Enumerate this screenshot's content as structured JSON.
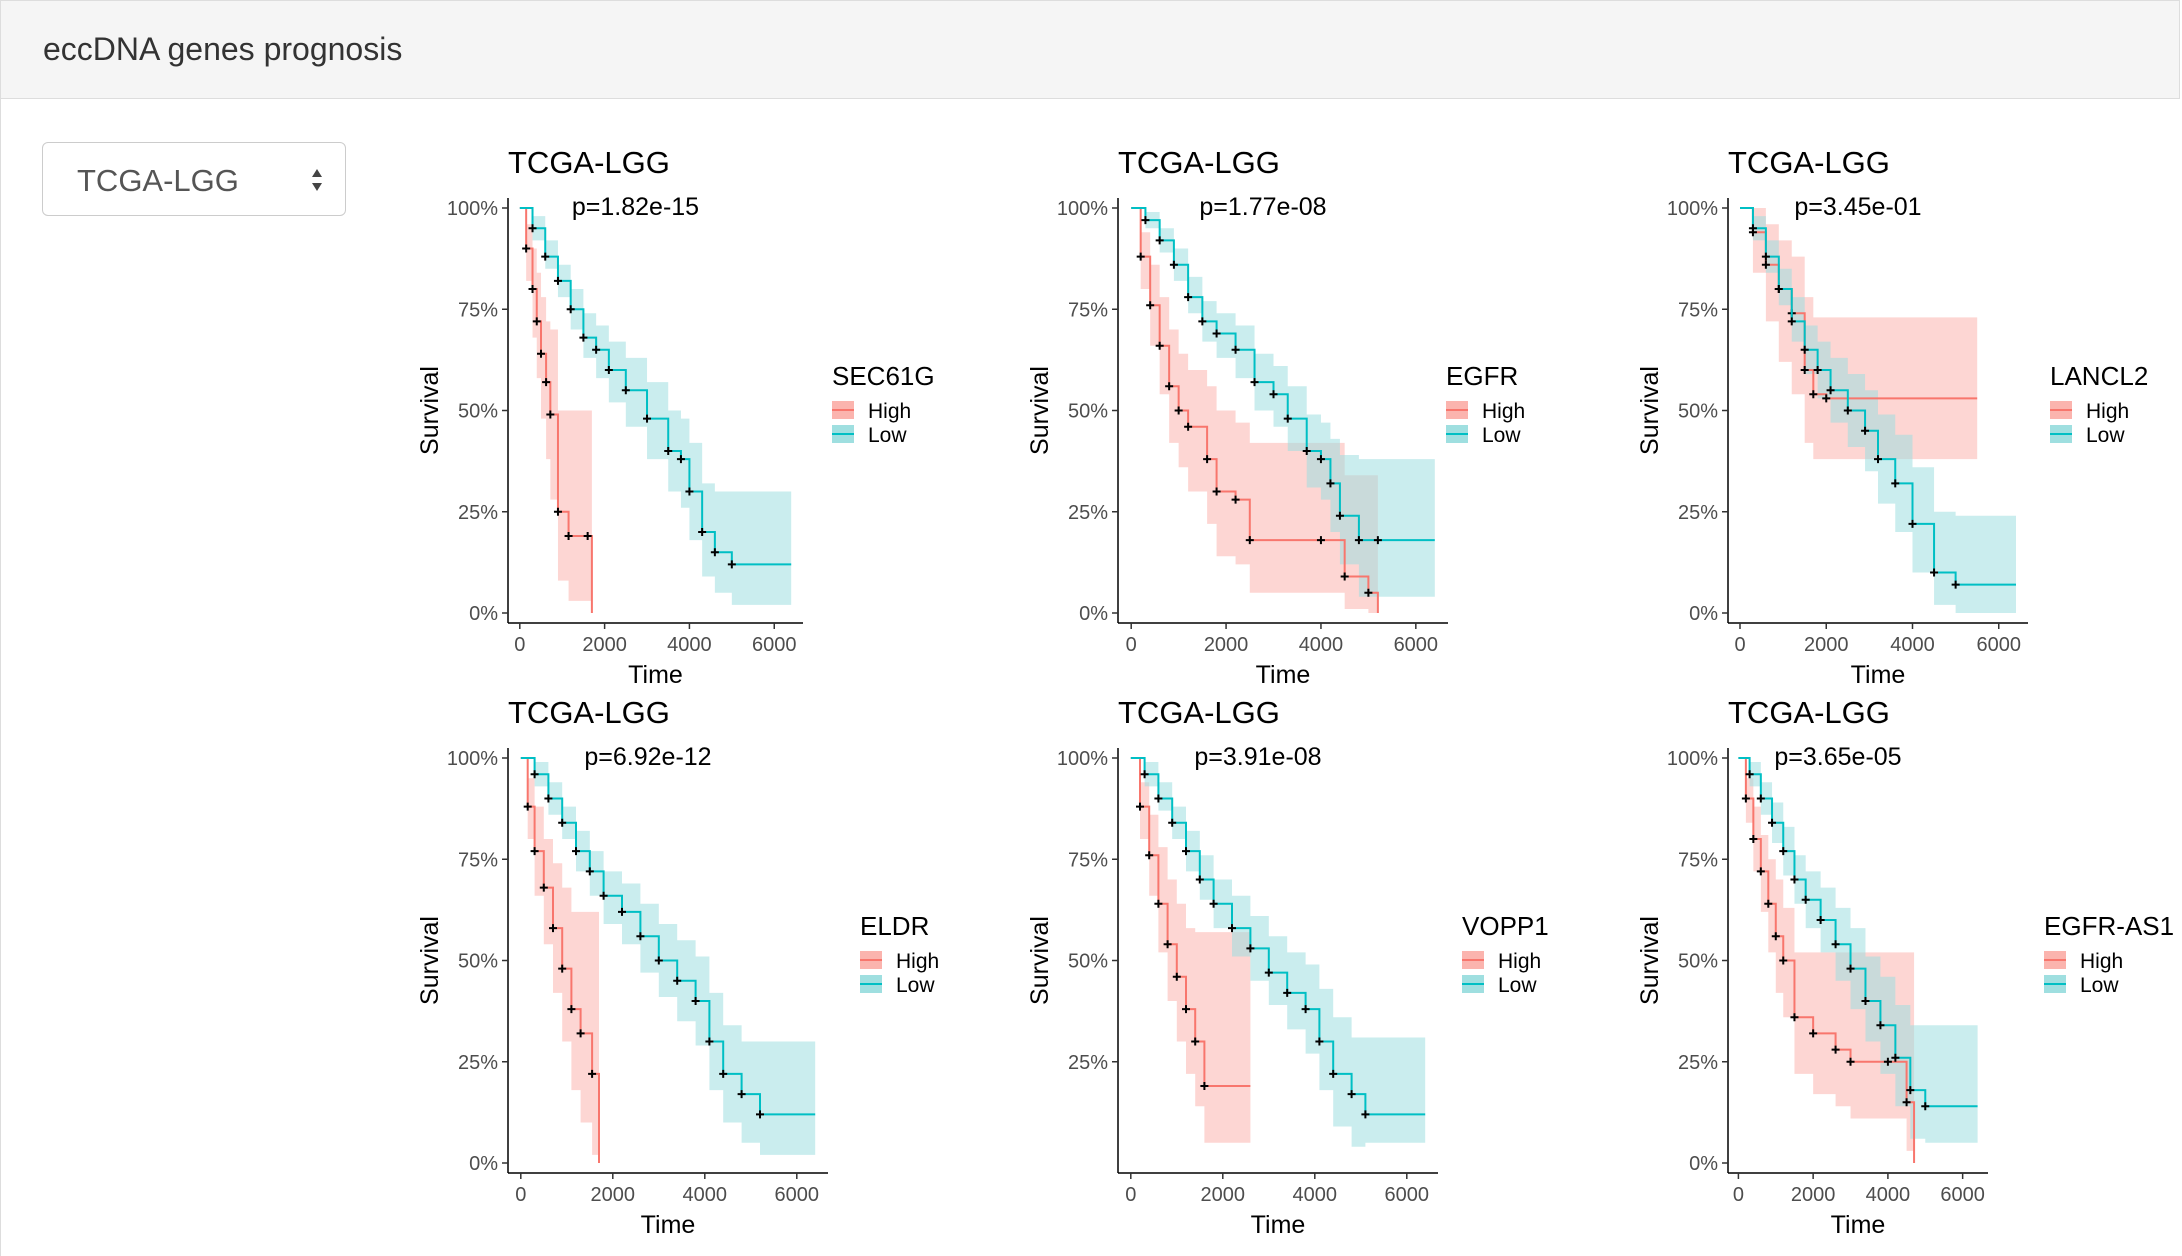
{
  "page_title": "eccDNA genes prognosis",
  "dataset_select": {
    "selected": "TCGA-LGG",
    "icon": "sort-caret-icon"
  },
  "colors": {
    "high": "#f8766d",
    "high_band": "#fbb4ae",
    "low": "#00bfc4",
    "low_band": "#9fdfe0",
    "censor": "#000000"
  },
  "chart_data": [
    {
      "type": "line",
      "title": "TCGA-LGG",
      "annotation": "p=1.82e-15",
      "gene": "SEC61G",
      "xlabel": "Time",
      "ylabel": "Survival",
      "xlim": [
        0,
        6400
      ],
      "xticks": [
        0,
        2000,
        4000,
        6000
      ],
      "ylim": [
        0,
        100
      ],
      "yticks": [
        "0%",
        "25%",
        "50%",
        "75%",
        "100%"
      ],
      "legend_labels": [
        "High",
        "Low"
      ],
      "series": [
        {
          "name": "High",
          "time": [
            0,
            150,
            300,
            400,
            500,
            620,
            720,
            900,
            1150,
            1600,
            1700
          ],
          "surv": [
            100,
            90,
            80,
            72,
            64,
            57,
            49,
            25,
            19,
            19,
            0
          ],
          "lower": [
            100,
            82,
            68,
            58,
            48,
            38,
            28,
            8,
            3,
            3,
            0
          ],
          "upper": [
            100,
            96,
            90,
            84,
            78,
            72,
            70,
            50,
            50,
            50,
            50
          ]
        },
        {
          "name": "Low",
          "time": [
            0,
            300,
            600,
            900,
            1200,
            1500,
            1800,
            2100,
            2500,
            3000,
            3500,
            3800,
            4000,
            4300,
            4600,
            5000,
            6400
          ],
          "surv": [
            100,
            95,
            88,
            82,
            75,
            68,
            65,
            60,
            55,
            48,
            40,
            38,
            30,
            20,
            15,
            12,
            12
          ],
          "lower": [
            100,
            92,
            85,
            78,
            70,
            63,
            58,
            52,
            46,
            38,
            30,
            26,
            18,
            9,
            5,
            2,
            2
          ],
          "upper": [
            100,
            98,
            92,
            86,
            80,
            74,
            71,
            67,
            63,
            57,
            50,
            48,
            42,
            32,
            30,
            30,
            30
          ]
        }
      ]
    },
    {
      "type": "line",
      "title": "TCGA-LGG",
      "annotation": "p=1.77e-08",
      "gene": "EGFR",
      "xlabel": "Time",
      "ylabel": "Survival",
      "xlim": [
        0,
        6400
      ],
      "xticks": [
        0,
        2000,
        4000,
        6000
      ],
      "ylim": [
        0,
        100
      ],
      "yticks": [
        "0%",
        "25%",
        "50%",
        "75%",
        "100%"
      ],
      "legend_labels": [
        "High",
        "Low"
      ],
      "series": [
        {
          "name": "High",
          "time": [
            0,
            200,
            400,
            600,
            800,
            1000,
            1200,
            1600,
            1800,
            2200,
            2500,
            4000,
            4500,
            5000,
            5200
          ],
          "surv": [
            100,
            88,
            76,
            66,
            56,
            50,
            46,
            38,
            30,
            28,
            18,
            18,
            9,
            5,
            0
          ],
          "lower": [
            100,
            80,
            66,
            54,
            42,
            36,
            30,
            22,
            14,
            12,
            5,
            5,
            1,
            0,
            0
          ],
          "upper": [
            100,
            94,
            86,
            78,
            70,
            64,
            60,
            56,
            50,
            47,
            42,
            42,
            34,
            34,
            34
          ]
        },
        {
          "name": "Low",
          "time": [
            0,
            300,
            600,
            900,
            1200,
            1500,
            1800,
            2200,
            2600,
            3000,
            3300,
            3700,
            4000,
            4200,
            4400,
            4800,
            5200,
            6400
          ],
          "surv": [
            100,
            97,
            92,
            86,
            78,
            72,
            69,
            65,
            57,
            54,
            48,
            40,
            38,
            32,
            24,
            18,
            18,
            18
          ],
          "lower": [
            100,
            95,
            89,
            82,
            74,
            67,
            63,
            58,
            50,
            46,
            40,
            31,
            28,
            20,
            12,
            4,
            4,
            4
          ],
          "upper": [
            100,
            99,
            95,
            90,
            83,
            77,
            74,
            71,
            64,
            61,
            56,
            49,
            47,
            43,
            39,
            38,
            38,
            38
          ]
        }
      ]
    },
    {
      "type": "line",
      "title": "TCGA-LGG",
      "annotation": "p=3.45e-01",
      "gene": "LANCL2",
      "xlabel": "Time",
      "ylabel": "Survival",
      "xlim": [
        0,
        6400
      ],
      "xticks": [
        0,
        2000,
        4000,
        6000
      ],
      "ylim": [
        0,
        100
      ],
      "yticks": [
        "0%",
        "25%",
        "50%",
        "75%",
        "100%"
      ],
      "legend_labels": [
        "High",
        "Low"
      ],
      "series": [
        {
          "name": "High",
          "time": [
            0,
            300,
            600,
            900,
            1200,
            1500,
            1700,
            2000,
            5500
          ],
          "surv": [
            100,
            94,
            86,
            80,
            74,
            60,
            54,
            53,
            53
          ],
          "lower": [
            100,
            84,
            72,
            62,
            54,
            42,
            38,
            38,
            38
          ],
          "upper": [
            100,
            100,
            96,
            92,
            88,
            78,
            73,
            73,
            73
          ]
        },
        {
          "name": "Low",
          "time": [
            0,
            300,
            600,
            900,
            1200,
            1500,
            1800,
            2100,
            2500,
            2900,
            3200,
            3600,
            4000,
            4500,
            5000,
            6400
          ],
          "surv": [
            100,
            95,
            88,
            80,
            72,
            65,
            60,
            55,
            50,
            45,
            38,
            32,
            22,
            10,
            7,
            7
          ],
          "lower": [
            100,
            92,
            84,
            76,
            67,
            59,
            53,
            47,
            41,
            35,
            27,
            20,
            10,
            2,
            0,
            0
          ],
          "upper": [
            100,
            98,
            92,
            85,
            78,
            71,
            67,
            63,
            59,
            55,
            49,
            44,
            36,
            25,
            24,
            24
          ]
        }
      ]
    },
    {
      "type": "line",
      "title": "TCGA-LGG",
      "annotation": "p=6.92e-12",
      "gene": "ELDR",
      "xlabel": "Time",
      "ylabel": "Survival",
      "xlim": [
        0,
        6400
      ],
      "xticks": [
        0,
        2000,
        4000,
        6000
      ],
      "ylim": [
        0,
        100
      ],
      "yticks": [
        "0%",
        "25%",
        "50%",
        "75%",
        "100%"
      ],
      "legend_labels": [
        "High",
        "Low"
      ],
      "series": [
        {
          "name": "High",
          "time": [
            0,
            150,
            300,
            500,
            700,
            900,
            1100,
            1300,
            1550,
            1700
          ],
          "surv": [
            100,
            88,
            77,
            68,
            58,
            48,
            38,
            32,
            22,
            0
          ],
          "lower": [
            100,
            80,
            66,
            54,
            42,
            30,
            18,
            10,
            2,
            0
          ],
          "upper": [
            100,
            95,
            88,
            80,
            74,
            68,
            62,
            62,
            62,
            62
          ]
        },
        {
          "name": "Low",
          "time": [
            0,
            300,
            600,
            900,
            1200,
            1500,
            1800,
            2200,
            2600,
            3000,
            3400,
            3800,
            4100,
            4400,
            4800,
            5200,
            6400
          ],
          "surv": [
            100,
            96,
            90,
            84,
            77,
            72,
            66,
            62,
            56,
            50,
            45,
            40,
            30,
            22,
            17,
            12,
            12
          ],
          "lower": [
            100,
            93,
            86,
            80,
            72,
            66,
            59,
            54,
            47,
            41,
            35,
            29,
            18,
            10,
            5,
            2,
            2
          ],
          "upper": [
            100,
            99,
            94,
            88,
            82,
            77,
            72,
            69,
            64,
            59,
            55,
            51,
            42,
            34,
            30,
            30,
            30
          ]
        }
      ]
    },
    {
      "type": "line",
      "title": "TCGA-LGG",
      "annotation": "p=3.91e-08",
      "gene": "VOPP1",
      "xlabel": "Time",
      "ylabel": "Survival",
      "xlim": [
        0,
        6400
      ],
      "xticks": [
        0,
        2000,
        4000,
        6000
      ],
      "ylim": [
        0,
        100
      ],
      "yticks": [
        "25%",
        "50%",
        "75%",
        "100%"
      ],
      "legend_labels": [
        "High",
        "Low"
      ],
      "series": [
        {
          "name": "High",
          "time": [
            0,
            200,
            400,
            600,
            800,
            1000,
            1200,
            1400,
            1600,
            2600
          ],
          "surv": [
            100,
            88,
            76,
            64,
            54,
            46,
            38,
            30,
            19,
            19
          ],
          "lower": [
            100,
            80,
            66,
            52,
            40,
            30,
            22,
            14,
            5,
            5
          ],
          "upper": [
            100,
            94,
            86,
            78,
            70,
            64,
            58,
            57,
            57,
            57
          ]
        },
        {
          "name": "Low",
          "time": [
            0,
            300,
            600,
            900,
            1200,
            1500,
            1800,
            2200,
            2600,
            3000,
            3400,
            3800,
            4100,
            4400,
            4800,
            5100,
            6400
          ],
          "surv": [
            100,
            96,
            90,
            84,
            77,
            70,
            64,
            58,
            53,
            47,
            42,
            38,
            30,
            22,
            17,
            12,
            12
          ],
          "lower": [
            100,
            93,
            87,
            80,
            72,
            65,
            58,
            51,
            45,
            39,
            33,
            27,
            18,
            9,
            4,
            5,
            5
          ],
          "upper": [
            100,
            99,
            94,
            88,
            82,
            76,
            70,
            66,
            61,
            56,
            52,
            49,
            43,
            36,
            31,
            31,
            31
          ]
        }
      ]
    },
    {
      "type": "line",
      "title": "TCGA-LGG",
      "annotation": "p=3.65e-05",
      "gene": "EGFR-AS1",
      "xlabel": "Time",
      "ylabel": "Survival",
      "xlim": [
        0,
        6400
      ],
      "xticks": [
        0,
        2000,
        4000,
        6000
      ],
      "ylim": [
        0,
        100
      ],
      "yticks": [
        "0%",
        "25%",
        "50%",
        "75%",
        "100%"
      ],
      "legend_labels": [
        "High",
        "Low"
      ],
      "series": [
        {
          "name": "High",
          "time": [
            0,
            200,
            400,
            600,
            800,
            1000,
            1200,
            1500,
            2000,
            2600,
            3000,
            4000,
            4500,
            4700
          ],
          "surv": [
            100,
            90,
            80,
            72,
            64,
            56,
            50,
            36,
            32,
            28,
            25,
            25,
            15,
            0
          ],
          "lower": [
            100,
            84,
            72,
            62,
            52,
            42,
            36,
            22,
            17,
            14,
            11,
            11,
            3,
            0
          ],
          "upper": [
            100,
            95,
            88,
            81,
            75,
            70,
            63,
            52,
            52,
            52,
            52,
            52,
            52,
            52
          ]
        },
        {
          "name": "Low",
          "time": [
            0,
            300,
            600,
            900,
            1200,
            1500,
            1800,
            2200,
            2600,
            3000,
            3400,
            3800,
            4200,
            4600,
            5000,
            6400
          ],
          "surv": [
            100,
            96,
            90,
            84,
            77,
            70,
            65,
            60,
            54,
            48,
            40,
            34,
            26,
            18,
            14,
            14
          ],
          "lower": [
            100,
            93,
            86,
            79,
            71,
            64,
            58,
            52,
            45,
            38,
            30,
            22,
            14,
            6,
            5,
            5
          ],
          "upper": [
            100,
            99,
            94,
            89,
            83,
            76,
            72,
            68,
            63,
            58,
            51,
            46,
            39,
            34,
            34,
            34
          ]
        }
      ]
    }
  ]
}
